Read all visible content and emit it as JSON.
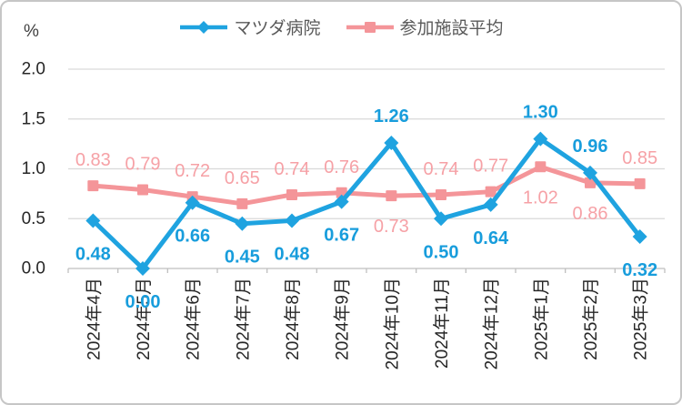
{
  "chart_data": {
    "type": "line",
    "title": "",
    "unit_label": "%",
    "categories": [
      "2024年4月",
      "2024年5月",
      "2024年6月",
      "2024年7月",
      "2024年8月",
      "2024年9月",
      "2024年10月",
      "2024年11月",
      "2024年12月",
      "2025年1月",
      "2025年2月",
      "2025年3月"
    ],
    "series": [
      {
        "name": "マツダ病院",
        "color": "#1FA3E0",
        "label_color": "#189DDC",
        "marker": "diamond",
        "values": [
          0.48,
          0.0,
          0.66,
          0.45,
          0.48,
          0.67,
          1.26,
          0.5,
          0.64,
          1.3,
          0.96,
          0.32
        ],
        "label_positions": [
          "below",
          "below",
          "below",
          "below",
          "below",
          "below",
          "above",
          "below",
          "below",
          "above",
          "above",
          "below"
        ]
      },
      {
        "name": "参加施設平均",
        "color": "#F49599",
        "label_color": "#F6A1A6",
        "marker": "square",
        "values": [
          0.83,
          0.79,
          0.72,
          0.65,
          0.74,
          0.76,
          0.73,
          0.74,
          0.77,
          1.02,
          0.86,
          0.85
        ],
        "label_positions": [
          "above",
          "above",
          "above",
          "above",
          "above",
          "above",
          "below",
          "above",
          "above",
          "below",
          "below",
          "above"
        ]
      }
    ],
    "ylim": [
      0,
      2.0
    ],
    "ytick_values": [
      0,
      0.5,
      1.0,
      1.5,
      2.0
    ],
    "ytick_labels": [
      "0.0",
      "0.5",
      "1.0",
      "1.5",
      "2.0"
    ],
    "grid": true,
    "legend_position": "top",
    "grid_color": "#d9d9d9",
    "axis_color": "#bfbfbf",
    "tick_label_color": "#262626",
    "legend_text_color": "#595959"
  }
}
